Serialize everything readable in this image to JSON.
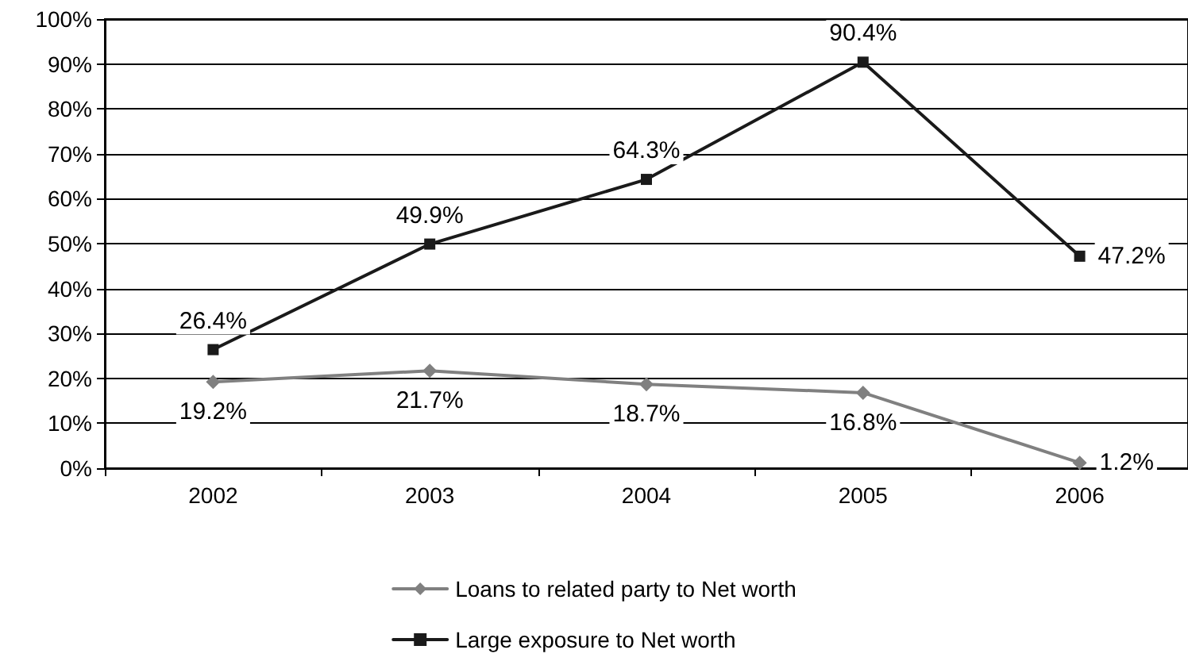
{
  "chart_data": {
    "type": "line",
    "categories": [
      "2002",
      "2003",
      "2004",
      "2005",
      "2006"
    ],
    "series": [
      {
        "name": "Loans to related party to Net worth",
        "color": "#808080",
        "marker": "diamond",
        "values": [
          19.2,
          21.7,
          18.7,
          16.8,
          1.2
        ],
        "value_labels": [
          "19.2%",
          "21.7%",
          "18.7%",
          "16.8%",
          "1.2%"
        ]
      },
      {
        "name": "Large exposure to Net worth",
        "color": "#1a1a1a",
        "marker": "square",
        "values": [
          26.4,
          49.9,
          64.3,
          90.4,
          47.2
        ],
        "value_labels": [
          "26.4%",
          "49.9%",
          "64.3%",
          "90.4%",
          "47.2%"
        ]
      }
    ],
    "ylim": [
      0,
      100
    ],
    "yticks": [
      {
        "value": 0,
        "label": "0%"
      },
      {
        "value": 10,
        "label": "10%"
      },
      {
        "value": 20,
        "label": "20%"
      },
      {
        "value": 30,
        "label": "30%"
      },
      {
        "value": 40,
        "label": "40%"
      },
      {
        "value": 50,
        "label": "50%"
      },
      {
        "value": 60,
        "label": "60%"
      },
      {
        "value": 70,
        "label": "70%"
      },
      {
        "value": 80,
        "label": "80%"
      },
      {
        "value": 90,
        "label": "90%"
      },
      {
        "value": 100,
        "label": "100%"
      }
    ],
    "grid": "y",
    "legend": "bottom",
    "line_style": "solid"
  }
}
